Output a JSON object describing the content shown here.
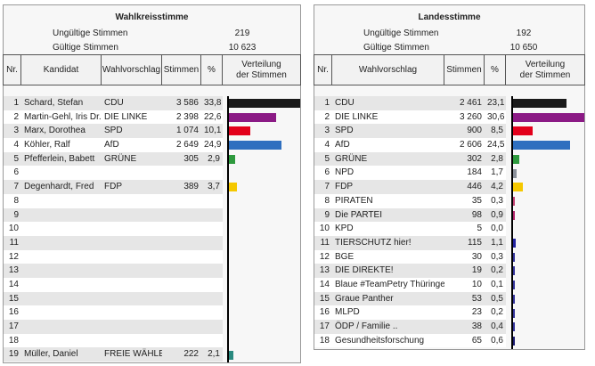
{
  "left": {
    "title": "Wahlkreisstimme",
    "invalid_label": "Ungültige Stimmen",
    "invalid_value": "219",
    "valid_label": "Gültige Stimmen",
    "valid_value": "10 623",
    "headers": {
      "nr": "Nr.",
      "candidate": "Kandidat",
      "party": "Wahlvorschlag",
      "votes": "Stimmen",
      "pct": "%",
      "dist": "Verteilung der Stimmen"
    },
    "rows": [
      {
        "nr": "1",
        "candidate": "Schard, Stefan",
        "party": "CDU",
        "votes": "3 586",
        "pct": "33,8",
        "value": 33.8,
        "color": "#1a1a1a"
      },
      {
        "nr": "2",
        "candidate": "Martin-Gehl, Iris Dr.",
        "party": "DIE LINKE",
        "votes": "2 398",
        "pct": "22,6",
        "value": 22.6,
        "color": "#8b1a85"
      },
      {
        "nr": "3",
        "candidate": "Marx, Dorothea",
        "party": "SPD",
        "votes": "1 074",
        "pct": "10,1",
        "value": 10.1,
        "color": "#e3001b"
      },
      {
        "nr": "4",
        "candidate": "Köhler, Ralf",
        "party": "AfD",
        "votes": "2 649",
        "pct": "24,9",
        "value": 24.9,
        "color": "#2f6fbf"
      },
      {
        "nr": "5",
        "candidate": "Pfefferlein, Babett",
        "party": "GRÜNE",
        "votes": "305",
        "pct": "2,9",
        "value": 2.9,
        "color": "#2e9a3e"
      },
      {
        "nr": "6",
        "candidate": "",
        "party": "",
        "votes": "",
        "pct": "",
        "value": 0,
        "color": ""
      },
      {
        "nr": "7",
        "candidate": "Degenhardt, Fred",
        "party": "FDP",
        "votes": "389",
        "pct": "3,7",
        "value": 3.7,
        "color": "#f5c800"
      },
      {
        "nr": "8",
        "candidate": "",
        "party": "",
        "votes": "",
        "pct": "",
        "value": 0,
        "color": ""
      },
      {
        "nr": "9",
        "candidate": "",
        "party": "",
        "votes": "",
        "pct": "",
        "value": 0,
        "color": ""
      },
      {
        "nr": "10",
        "candidate": "",
        "party": "",
        "votes": "",
        "pct": "",
        "value": 0,
        "color": ""
      },
      {
        "nr": "11",
        "candidate": "",
        "party": "",
        "votes": "",
        "pct": "",
        "value": 0,
        "color": ""
      },
      {
        "nr": "12",
        "candidate": "",
        "party": "",
        "votes": "",
        "pct": "",
        "value": 0,
        "color": ""
      },
      {
        "nr": "13",
        "candidate": "",
        "party": "",
        "votes": "",
        "pct": "",
        "value": 0,
        "color": ""
      },
      {
        "nr": "14",
        "candidate": "",
        "party": "",
        "votes": "",
        "pct": "",
        "value": 0,
        "color": ""
      },
      {
        "nr": "15",
        "candidate": "",
        "party": "",
        "votes": "",
        "pct": "",
        "value": 0,
        "color": ""
      },
      {
        "nr": "16",
        "candidate": "",
        "party": "",
        "votes": "",
        "pct": "",
        "value": 0,
        "color": ""
      },
      {
        "nr": "17",
        "candidate": "",
        "party": "",
        "votes": "",
        "pct": "",
        "value": 0,
        "color": ""
      },
      {
        "nr": "18",
        "candidate": "",
        "party": "",
        "votes": "",
        "pct": "",
        "value": 0,
        "color": ""
      },
      {
        "nr": "19",
        "candidate": "Müller, Daniel",
        "party": "FREIE WÄHLER",
        "votes": "222",
        "pct": "2,1",
        "value": 2.1,
        "color": "#2a8a80"
      }
    ]
  },
  "right": {
    "title": "Landesstimme",
    "invalid_label": "Ungültige Stimmen",
    "invalid_value": "192",
    "valid_label": "Gültige Stimmen",
    "valid_value": "10 650",
    "headers": {
      "nr": "Nr.",
      "party": "Wahlvorschlag",
      "votes": "Stimmen",
      "pct": "%",
      "dist": "Verteilung der Stimmen"
    },
    "rows": [
      {
        "nr": "1",
        "party": "CDU",
        "votes": "2 461",
        "pct": "23,1",
        "value": 23.1,
        "color": "#1a1a1a"
      },
      {
        "nr": "2",
        "party": "DIE LINKE",
        "votes": "3 260",
        "pct": "30,6",
        "value": 30.6,
        "color": "#8b1a85"
      },
      {
        "nr": "3",
        "party": "SPD",
        "votes": "900",
        "pct": "8,5",
        "value": 8.5,
        "color": "#e3001b"
      },
      {
        "nr": "4",
        "party": "AfD",
        "votes": "2 606",
        "pct": "24,5",
        "value": 24.5,
        "color": "#2f6fbf"
      },
      {
        "nr": "5",
        "party": "GRÜNE",
        "votes": "302",
        "pct": "2,8",
        "value": 2.8,
        "color": "#2e9a3e"
      },
      {
        "nr": "6",
        "party": "NPD",
        "votes": "184",
        "pct": "1,7",
        "value": 1.7,
        "color": "#8a9099"
      },
      {
        "nr": "7",
        "party": "FDP",
        "votes": "446",
        "pct": "4,2",
        "value": 4.2,
        "color": "#f5c800"
      },
      {
        "nr": "8",
        "party": "PIRATEN",
        "votes": "35",
        "pct": "0,3",
        "value": 0.3,
        "color": "#c04070"
      },
      {
        "nr": "9",
        "party": "Die PARTEI",
        "votes": "98",
        "pct": "0,9",
        "value": 0.9,
        "color": "#b0246a"
      },
      {
        "nr": "10",
        "party": "KPD",
        "votes": "5",
        "pct": "0,0",
        "value": 0.0,
        "color": "#c00000"
      },
      {
        "nr": "11",
        "party": "TIERSCHUTZ hier!",
        "votes": "115",
        "pct": "1,1",
        "value": 1.1,
        "color": "#2323a0"
      },
      {
        "nr": "12",
        "party": "BGE",
        "votes": "30",
        "pct": "0,3",
        "value": 0.3,
        "color": "#333399"
      },
      {
        "nr": "13",
        "party": "DIE DIREKTE!",
        "votes": "19",
        "pct": "0,2",
        "value": 0.2,
        "color": "#333399"
      },
      {
        "nr": "14",
        "party": "Blaue #TeamPetry Thüringen",
        "votes": "10",
        "pct": "0,1",
        "value": 0.1,
        "color": "#333399"
      },
      {
        "nr": "15",
        "party": "Graue Panther",
        "votes": "53",
        "pct": "0,5",
        "value": 0.5,
        "color": "#333399"
      },
      {
        "nr": "16",
        "party": "MLPD",
        "votes": "23",
        "pct": "0,2",
        "value": 0.2,
        "color": "#333399"
      },
      {
        "nr": "17",
        "party": "ÖDP / Familie ..",
        "votes": "38",
        "pct": "0,4",
        "value": 0.4,
        "color": "#333399"
      },
      {
        "nr": "18",
        "party": "Gesundheitsforschung",
        "votes": "65",
        "pct": "0,6",
        "value": 0.6,
        "color": "#1a1a70"
      }
    ]
  }
}
